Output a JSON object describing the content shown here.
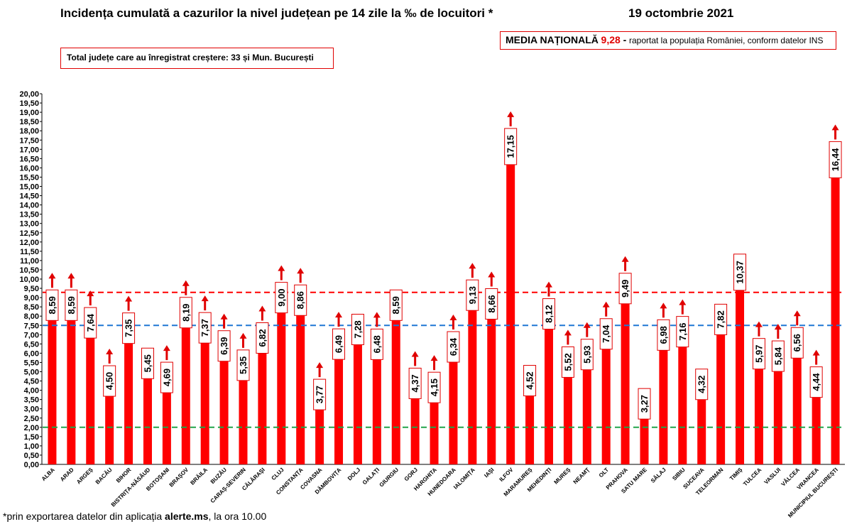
{
  "header": {
    "title": "Incidența cumulată a cazurilor la nivel județean pe 14 zile la ‰ de locuitori *",
    "date": "19 octombrie 2021"
  },
  "media": {
    "label": "MEDIA NAȚIONALĂ",
    "value": "9,28",
    "dash": " -",
    "rest": "raportat la populația României, conform datelor INS"
  },
  "total_note": "Total județe care au înregistrat creștere:  33 și Mun. București",
  "footnote": {
    "prefix": "*prin exportarea datelor din aplicația ",
    "app": "alerte.ms",
    "suffix": ", la ora 10.00"
  },
  "colors": {
    "bar": "#ff0000",
    "arrow": "#e00000",
    "label_border": "#e00000",
    "ref_red": "#ff0000",
    "ref_blue": "#1f77d4",
    "ref_green": "#22a34a"
  },
  "chart_data": {
    "type": "bar",
    "categories": [
      "ALBA",
      "ARAD",
      "ARGEȘ",
      "BACĂU",
      "BIHOR",
      "BISTRIȚA-NĂSĂUD",
      "BOTOȘANI",
      "BRAȘOV",
      "BRĂILA",
      "BUZĂU",
      "CARAȘ-SEVERIN",
      "CĂLĂRAŞI",
      "CLUJ",
      "CONSTANȚA",
      "COVASNA",
      "DÂMBOVIȚA",
      "DOLJ",
      "GALAȚI",
      "GIURGIU",
      "GORJ",
      "HARGHITA",
      "HUNEDOARA",
      "IALOMIȚA",
      "IAȘI",
      "ILFOV",
      "MARAMUREȘ",
      "MEHEDINȚI",
      "MUREȘ",
      "NEAMȚ",
      "OLT",
      "PRAHOVA",
      "SATU MARE",
      "SĂLAJ",
      "SIBIU",
      "SUCEAVA",
      "TELEORMAN",
      "TIMIȘ",
      "TULCEA",
      "VASLUI",
      "VÂLCEA",
      "VRANCEA",
      "MUNICIPIUL BUCUREȘTI"
    ],
    "values": [
      8.59,
      8.59,
      7.64,
      4.5,
      7.35,
      5.45,
      4.69,
      8.19,
      7.37,
      6.39,
      5.35,
      6.82,
      9.0,
      8.86,
      3.77,
      6.49,
      7.28,
      6.48,
      8.59,
      4.37,
      4.15,
      6.34,
      9.13,
      8.66,
      17.15,
      4.52,
      8.12,
      5.52,
      5.93,
      7.04,
      9.49,
      3.27,
      6.98,
      7.16,
      4.32,
      7.82,
      10.37,
      5.97,
      5.84,
      6.56,
      4.44,
      16.44
    ],
    "value_labels": [
      "8,59",
      "8,59",
      "7,64",
      "4,50",
      "7,35",
      "5,45",
      "4,69",
      "8,19",
      "7,37",
      "6,39",
      "5,35",
      "6,82",
      "9,00",
      "8,86",
      "3,77",
      "6,49",
      "7,28",
      "6,48",
      "8,59",
      "4,37",
      "4,15",
      "6,34",
      "9,13",
      "8,66",
      "17,15",
      "4,52",
      "8,12",
      "5,52",
      "5,93",
      "7,04",
      "9,49",
      "3,27",
      "6,98",
      "7,16",
      "4,32",
      "7,82",
      "10,37",
      "5,97",
      "5,84",
      "6,56",
      "4,44",
      "16,44"
    ],
    "increased": [
      true,
      true,
      true,
      true,
      true,
      false,
      true,
      true,
      true,
      true,
      true,
      true,
      true,
      true,
      true,
      true,
      false,
      true,
      false,
      true,
      true,
      true,
      true,
      true,
      true,
      false,
      true,
      true,
      true,
      true,
      true,
      false,
      true,
      true,
      false,
      false,
      false,
      true,
      true,
      true,
      true,
      true
    ],
    "ylim": [
      0,
      20
    ],
    "y_ticks": [
      "0,00",
      "0,50",
      "1,00",
      "1,50",
      "2,00",
      "2,50",
      "3,00",
      "3,50",
      "4,00",
      "4,50",
      "5,00",
      "5,50",
      "6,00",
      "6,50",
      "7,00",
      "7,50",
      "8,00",
      "8,50",
      "9,00",
      "9,50",
      "10,00",
      "10,50",
      "11,00",
      "11,50",
      "12,00",
      "12,50",
      "13,00",
      "13,50",
      "14,00",
      "14,50",
      "15,00",
      "15,50",
      "16,00",
      "16,50",
      "17,00",
      "17,50",
      "18,00",
      "18,50",
      "19,00",
      "19,50",
      "20,00"
    ],
    "reference_lines": [
      {
        "value": 9.28,
        "color": "#ff0000"
      },
      {
        "value": 7.5,
        "color": "#1f77d4"
      },
      {
        "value": 2.0,
        "color": "#22a34a"
      }
    ],
    "grid": false,
    "legend": "none"
  }
}
